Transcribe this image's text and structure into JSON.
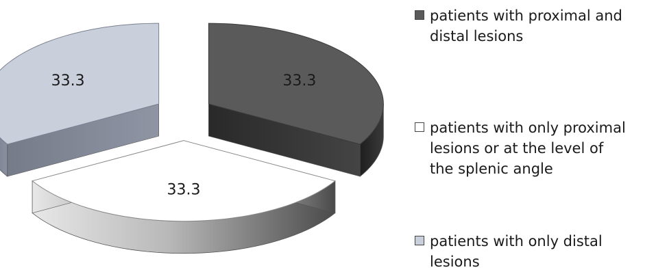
{
  "chart_data": {
    "type": "pie",
    "title": "",
    "categories": [
      "patients with proximal and distal lesions",
      "patients with only proximal lesions or at the level of the splenic angle",
      "patients with only distal lesions"
    ],
    "values": [
      33.3,
      33.3,
      33.3
    ],
    "data_labels": [
      "33.3",
      "33.3",
      "33.3"
    ],
    "colors": [
      "#5a5a5a",
      "#ffffff",
      "#c9cfdb"
    ],
    "exploded": true,
    "three_d": true,
    "legend_position": "right"
  },
  "legend": {
    "items": [
      {
        "label": "patients with proximal and\ndistal lesions",
        "color": "#5a5a5a"
      },
      {
        "label": "patients with only proximal\nlesions or at the level of\nthe splenic angle",
        "color": "#ffffff"
      },
      {
        "label": "patients with only distal\nlesions",
        "color": "#c9cfdb"
      }
    ]
  }
}
